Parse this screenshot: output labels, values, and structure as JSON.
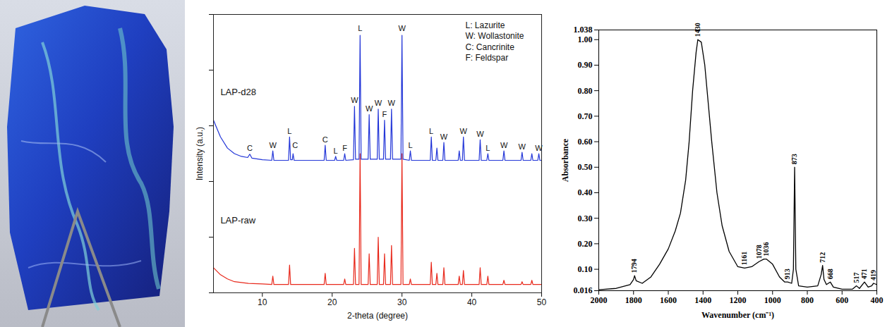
{
  "chart_data": [
    {
      "type": "line",
      "xlabel": "2-theta (degree)",
      "ylabel": "Intensity (a.u.)",
      "xlim": [
        3,
        50
      ],
      "xticks": [
        10,
        20,
        30,
        40,
        50
      ],
      "ylim": [
        0,
        100
      ],
      "yticks": [
        0,
        20,
        40,
        60,
        80,
        100
      ],
      "tick_labels": "x",
      "key": [
        "L: Lazurite",
        "W: Wollastonite",
        "C: Cancrinite",
        "F: Feldspar"
      ],
      "series": [
        {
          "name": "LAP-raw",
          "color": "#e8291c",
          "label_at": {
            "x": 4,
            "y": 26
          },
          "x": [
            3,
            4,
            5,
            6,
            8,
            10,
            11.35,
            11.5,
            11.65,
            13.75,
            13.9,
            14.05,
            18.85,
            19,
            19.15,
            21.65,
            21.8,
            21.95,
            23.05,
            23.2,
            23.35,
            23.85,
            24,
            24.15,
            25.15,
            25.3,
            25.45,
            26.45,
            26.6,
            26.75,
            27.35,
            27.5,
            27.65,
            28.35,
            28.5,
            28.65,
            29.85,
            30,
            30.15,
            31.05,
            31.2,
            31.35,
            34.05,
            34.2,
            34.35,
            34.85,
            35,
            35.15,
            35.85,
            36,
            36.15,
            38.05,
            38.2,
            38.35,
            38.65,
            38.8,
            38.95,
            41.05,
            41.2,
            41.35,
            42.15,
            42.3,
            42.45,
            44.45,
            44.6,
            44.75,
            47.05,
            47.2,
            47.35,
            48.45,
            48.6,
            48.75,
            50
          ],
          "values": [
            9,
            6.5,
            5,
            4,
            3.4,
            3.2,
            3,
            6,
            3,
            3,
            10,
            3,
            3,
            7,
            3,
            3,
            5,
            3,
            3,
            16,
            3,
            3,
            50,
            3,
            3,
            14,
            3,
            3,
            20,
            3,
            3,
            14,
            3,
            3,
            17,
            3,
            3,
            50,
            3,
            3,
            5,
            3,
            3,
            11,
            3,
            3,
            7,
            3,
            3,
            9,
            3,
            3,
            6,
            3,
            3,
            8,
            3,
            3,
            9,
            3,
            3,
            6,
            3,
            3,
            4.5,
            3,
            3,
            4,
            3,
            3,
            4.5,
            3,
            3
          ]
        },
        {
          "name": "LAP-d28",
          "color": "#2336d8",
          "label_at": {
            "x": 4,
            "y": 72
          },
          "x": [
            3,
            4,
            5,
            6,
            7,
            7.9,
            8.2,
            8.5,
            10,
            11.35,
            11.5,
            11.65,
            13.75,
            13.9,
            14.05,
            14.3,
            14.4,
            14.55,
            18.85,
            19,
            19.15,
            20.35,
            20.5,
            20.65,
            21.65,
            21.8,
            21.95,
            23.05,
            23.2,
            23.35,
            23.85,
            24,
            24.15,
            25.15,
            25.3,
            25.45,
            26.45,
            26.6,
            26.75,
            27.35,
            27.5,
            27.65,
            28.35,
            28.5,
            28.65,
            29.85,
            30,
            30.15,
            31.05,
            31.2,
            31.35,
            34.05,
            34.2,
            34.35,
            34.85,
            35,
            35.15,
            35.85,
            36,
            36.15,
            38.05,
            38.2,
            38.35,
            38.65,
            38.8,
            38.95,
            41.05,
            41.2,
            41.35,
            42.15,
            42.3,
            42.45,
            44.45,
            44.6,
            44.75,
            47.05,
            47.2,
            47.35,
            48.45,
            48.6,
            48.75,
            49.45,
            49.6,
            49.75,
            50
          ],
          "values": [
            62,
            56,
            52,
            50,
            49,
            48.6,
            49.8,
            48.4,
            47.8,
            47.6,
            51,
            47.6,
            47.6,
            56,
            47.8,
            47.8,
            50,
            47.6,
            47.6,
            53,
            47.6,
            47.6,
            49,
            47.6,
            47.6,
            50,
            47.6,
            47.8,
            67,
            48,
            48,
            92.5,
            48,
            48,
            64,
            48,
            48,
            66,
            48,
            48,
            62,
            48,
            48,
            66,
            48,
            48,
            92.5,
            48,
            47.6,
            51,
            47.6,
            47.6,
            56,
            47.6,
            47.6,
            52,
            47.6,
            47.6,
            54,
            47.6,
            47.6,
            51,
            47.6,
            47.6,
            56,
            47.6,
            47.6,
            55,
            47.6,
            47.6,
            50,
            47.6,
            47.6,
            51,
            47.6,
            47.6,
            50.5,
            47.6,
            47.6,
            50,
            47.6,
            47.6,
            50,
            47.6,
            47.6
          ]
        }
      ],
      "annotations": [
        {
          "text": "C",
          "x": 8.2,
          "y": 52
        },
        {
          "text": "W",
          "x": 11.5,
          "y": 53
        },
        {
          "text": "L",
          "x": 13.9,
          "y": 58
        },
        {
          "text": "C",
          "x": 14.7,
          "y": 53
        },
        {
          "text": "C",
          "x": 19,
          "y": 55
        },
        {
          "text": "L",
          "x": 20.5,
          "y": 51
        },
        {
          "text": "F",
          "x": 21.8,
          "y": 52
        },
        {
          "text": "W",
          "x": 23.2,
          "y": 69
        },
        {
          "text": "L",
          "x": 24,
          "y": 95
        },
        {
          "text": "W",
          "x": 25.3,
          "y": 66
        },
        {
          "text": "W",
          "x": 26.6,
          "y": 68
        },
        {
          "text": "F",
          "x": 27.5,
          "y": 64
        },
        {
          "text": "W",
          "x": 28.5,
          "y": 68
        },
        {
          "text": "W",
          "x": 30,
          "y": 95
        },
        {
          "text": "L",
          "x": 31.2,
          "y": 53
        },
        {
          "text": "L",
          "x": 34.2,
          "y": 58
        },
        {
          "text": "W",
          "x": 36,
          "y": 56
        },
        {
          "text": "W",
          "x": 38.8,
          "y": 58
        },
        {
          "text": "W",
          "x": 41.2,
          "y": 57
        },
        {
          "text": "L",
          "x": 42.3,
          "y": 52
        },
        {
          "text": "W",
          "x": 44.6,
          "y": 53
        },
        {
          "text": "W",
          "x": 47.2,
          "y": 52.5
        },
        {
          "text": "W",
          "x": 49.6,
          "y": 52
        }
      ]
    },
    {
      "type": "line",
      "xlabel": "Wavenumber (cm⁻¹)",
      "ylabel": "Absorbance",
      "xlim": [
        2000,
        400
      ],
      "xticks": [
        2000,
        1800,
        1600,
        1400,
        1200,
        1000,
        800,
        600,
        400
      ],
      "ylim": [
        0.016,
        1.038
      ],
      "yticks": [
        0.016,
        {
          "value": 0.1,
          "label": "0.10"
        },
        {
          "value": 0.2,
          "label": "0.20"
        },
        {
          "value": 0.3,
          "label": "0.30"
        },
        {
          "value": 0.4,
          "label": "0.40"
        },
        {
          "value": 0.5,
          "label": "0.50"
        },
        {
          "value": 0.6,
          "label": "0.60"
        },
        {
          "value": 0.7,
          "label": "0.70"
        },
        {
          "value": 0.8,
          "label": "0.80"
        },
        {
          "value": 0.9,
          "label": "0.90"
        },
        {
          "value": 1.0,
          "label": "1.00"
        },
        1.038
      ],
      "color": "#000000",
      "x": [
        2000,
        1900,
        1820,
        1800,
        1794,
        1785,
        1750,
        1700,
        1650,
        1600,
        1560,
        1530,
        1500,
        1480,
        1460,
        1440,
        1430,
        1410,
        1390,
        1370,
        1350,
        1320,
        1290,
        1250,
        1200,
        1161,
        1120,
        1078,
        1050,
        1036,
        1000,
        960,
        930,
        913,
        890,
        880,
        873,
        866,
        850,
        800,
        740,
        720,
        712,
        704,
        690,
        668,
        650,
        600,
        540,
        517,
        500,
        471,
        450,
        430,
        419,
        400
      ],
      "values": [
        0.02,
        0.025,
        0.04,
        0.06,
        0.075,
        0.055,
        0.045,
        0.07,
        0.12,
        0.18,
        0.25,
        0.32,
        0.45,
        0.6,
        0.8,
        0.95,
        1.0,
        0.99,
        0.9,
        0.75,
        0.6,
        0.4,
        0.27,
        0.17,
        0.11,
        0.105,
        0.11,
        0.13,
        0.14,
        0.14,
        0.12,
        0.07,
        0.05,
        0.05,
        0.045,
        0.1,
        0.5,
        0.1,
        0.035,
        0.03,
        0.035,
        0.08,
        0.115,
        0.06,
        0.04,
        0.05,
        0.03,
        0.022,
        0.022,
        0.035,
        0.025,
        0.05,
        0.03,
        0.035,
        0.045,
        0.04
      ],
      "peaks": {
        "x": [
          1794,
          1430,
          1161,
          1078,
          1036,
          913,
          873,
          712,
          668,
          517,
          471,
          419
        ],
        "y": [
          0.075,
          1.0,
          0.105,
          0.13,
          0.14,
          0.05,
          0.5,
          0.115,
          0.05,
          0.035,
          0.05,
          0.045
        ]
      }
    }
  ]
}
